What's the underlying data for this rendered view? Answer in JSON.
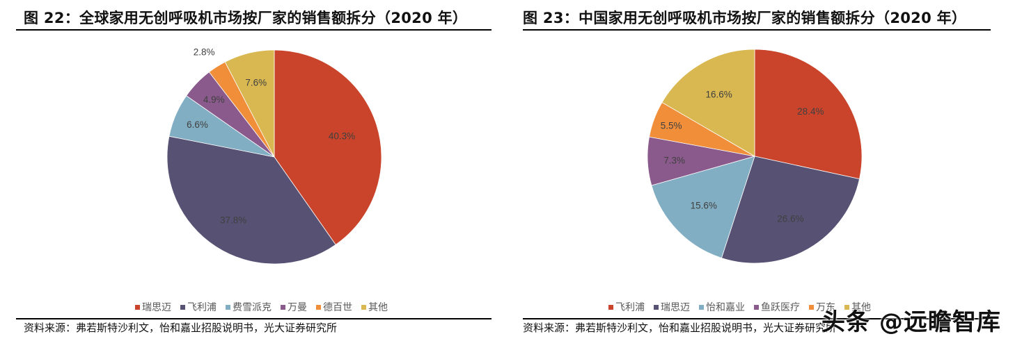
{
  "chart_data": [
    {
      "type": "pie",
      "title": "图 22：全球家用无创呼吸机市场按厂家的销售额拆分（2020 年）",
      "categories": [
        "瑞思迈",
        "飞利浦",
        "费雪派克",
        "万曼",
        "德百世",
        "其他"
      ],
      "values": [
        40.3,
        37.8,
        6.6,
        4.9,
        2.8,
        7.6
      ],
      "labels": [
        "40.3%",
        "37.8%",
        "6.6%",
        "4.9%",
        "2.8%",
        "7.6%"
      ],
      "colors": [
        "#C9442A",
        "#575173",
        "#82AEC3",
        "#8A5A8C",
        "#F08E3A",
        "#D9B851"
      ],
      "start_angle": "12 o'clock, clockwise",
      "legend_position": "bottom",
      "source": "资料来源：弗若斯特沙利文，怡和嘉业招股说明书，光大证券研究所"
    },
    {
      "type": "pie",
      "title": "图 23：中国家用无创呼吸机市场按厂家的销售额拆分（2020 年）",
      "categories": [
        "飞利浦",
        "瑞思迈",
        "怡和嘉业",
        "鱼跃医疗",
        "万东",
        "其他"
      ],
      "values": [
        28.4,
        26.6,
        15.6,
        7.3,
        5.5,
        16.6
      ],
      "labels": [
        "28.4%",
        "26.6%",
        "15.6%",
        "7.3%",
        "5.5%",
        "16.6%"
      ],
      "colors": [
        "#C9442A",
        "#575173",
        "#82AEC3",
        "#8A5A8C",
        "#F08E3A",
        "#D9B851"
      ],
      "start_angle": "12 o'clock, clockwise",
      "legend_position": "bottom",
      "source": "资料来源：弗若斯特沙利文，怡和嘉业招股说明书，光大证券研究所"
    }
  ],
  "left": {
    "title": "图 22：全球家用无创呼吸机市场按厂家的销售额拆分（2020 年）",
    "legend": [
      {
        "label": "瑞思迈",
        "color": "#C9442A"
      },
      {
        "label": "飞利浦",
        "color": "#575173"
      },
      {
        "label": "费雪派克",
        "color": "#82AEC3"
      },
      {
        "label": "万曼",
        "color": "#8A5A8C"
      },
      {
        "label": "德百世",
        "color": "#F08E3A"
      },
      {
        "label": "其他",
        "color": "#D9B851"
      }
    ],
    "source": "资料来源：弗若斯特沙利文，怡和嘉业招股说明书，光大证券研究所"
  },
  "right": {
    "title": "图 23：中国家用无创呼吸机市场按厂家的销售额拆分（2020 年）",
    "legend": [
      {
        "label": "飞利浦",
        "color": "#C9442A"
      },
      {
        "label": "瑞思迈",
        "color": "#575173"
      },
      {
        "label": "怡和嘉业",
        "color": "#82AEC3"
      },
      {
        "label": "鱼跃医疗",
        "color": "#8A5A8C"
      },
      {
        "label": "万东",
        "color": "#F08E3A"
      },
      {
        "label": "其他",
        "color": "#D9B851"
      }
    ],
    "source": "资料来源：弗若斯特沙利文，怡和嘉业招股说明书，光大证券研究所"
  },
  "watermark": "头条 @远瞻智库"
}
